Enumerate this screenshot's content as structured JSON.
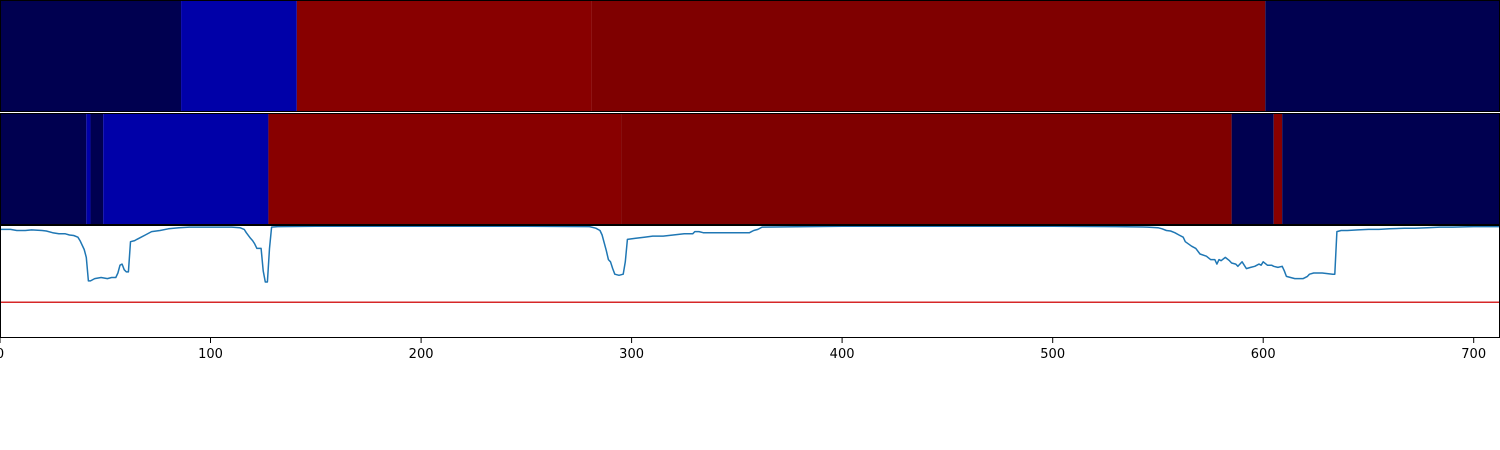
{
  "chart_data": {
    "type": "heatmap",
    "x_range": [
      0,
      712
    ],
    "x_ticks": [
      0,
      100,
      200,
      300,
      400,
      500,
      600,
      700
    ],
    "heatmap_rows": [
      {
        "segments": [
          {
            "start": 0,
            "end": 86,
            "color": "#000050"
          },
          {
            "start": 86,
            "end": 141,
            "color": "#0000a8"
          },
          {
            "start": 141,
            "end": 281,
            "color": "#880000"
          },
          {
            "start": 281,
            "end": 601,
            "color": "#7f0000"
          },
          {
            "start": 601,
            "end": 712,
            "color": "#000050"
          }
        ]
      },
      {
        "segments": [
          {
            "start": 0,
            "end": 41,
            "color": "#000050"
          },
          {
            "start": 41,
            "end": 43,
            "color": "#0000a8"
          },
          {
            "start": 43,
            "end": 49,
            "color": "#000050"
          },
          {
            "start": 49,
            "end": 127.5,
            "color": "#0000a8"
          },
          {
            "start": 127.5,
            "end": 295,
            "color": "#880000"
          },
          {
            "start": 295,
            "end": 585,
            "color": "#7f0000"
          },
          {
            "start": 585,
            "end": 605,
            "color": "#000050"
          },
          {
            "start": 605,
            "end": 609,
            "color": "#880000"
          },
          {
            "start": 609,
            "end": 712,
            "color": "#000050"
          }
        ]
      }
    ],
    "line_series": {
      "color": "#1f77b4",
      "y_range": [
        0,
        1
      ],
      "points": [
        [
          0,
          0.97
        ],
        [
          5,
          0.97
        ],
        [
          8,
          0.96
        ],
        [
          12,
          0.96
        ],
        [
          15,
          0.965
        ],
        [
          20,
          0.96
        ],
        [
          22,
          0.955
        ],
        [
          25,
          0.94
        ],
        [
          28,
          0.93
        ],
        [
          31,
          0.93
        ],
        [
          33,
          0.92
        ],
        [
          35,
          0.915
        ],
        [
          37,
          0.9
        ],
        [
          38,
          0.87
        ],
        [
          40,
          0.79
        ],
        [
          41,
          0.72
        ],
        [
          42,
          0.51
        ],
        [
          43,
          0.51
        ],
        [
          45,
          0.53
        ],
        [
          48,
          0.54
        ],
        [
          51,
          0.53
        ],
        [
          53,
          0.54
        ],
        [
          55,
          0.54
        ],
        [
          56,
          0.58
        ],
        [
          57,
          0.65
        ],
        [
          58,
          0.66
        ],
        [
          59,
          0.61
        ],
        [
          60,
          0.59
        ],
        [
          61,
          0.59
        ],
        [
          62,
          0.86
        ],
        [
          64,
          0.87
        ],
        [
          65,
          0.88
        ],
        [
          67,
          0.9
        ],
        [
          69,
          0.92
        ],
        [
          72,
          0.95
        ],
        [
          76,
          0.96
        ],
        [
          80,
          0.975
        ],
        [
          85,
          0.985
        ],
        [
          90,
          0.99
        ],
        [
          100,
          0.99
        ],
        [
          110,
          0.99
        ],
        [
          114,
          0.985
        ],
        [
          116,
          0.97
        ],
        [
          117,
          0.94
        ],
        [
          119,
          0.89
        ],
        [
          120,
          0.87
        ],
        [
          121,
          0.84
        ],
        [
          122,
          0.8
        ],
        [
          124,
          0.8
        ],
        [
          125,
          0.6
        ],
        [
          126,
          0.5
        ],
        [
          127,
          0.5
        ],
        [
          128,
          0.8
        ],
        [
          129,
          0.99
        ],
        [
          132,
          0.995
        ],
        [
          150,
          0.997
        ],
        [
          200,
          0.997
        ],
        [
          250,
          0.997
        ],
        [
          280,
          0.995
        ],
        [
          283,
          0.98
        ],
        [
          285,
          0.96
        ],
        [
          286,
          0.92
        ],
        [
          287,
          0.85
        ],
        [
          288,
          0.78
        ],
        [
          289,
          0.7
        ],
        [
          290,
          0.68
        ],
        [
          291,
          0.62
        ],
        [
          292,
          0.57
        ],
        [
          294,
          0.56
        ],
        [
          296,
          0.57
        ],
        [
          297,
          0.68
        ],
        [
          298,
          0.88
        ],
        [
          302,
          0.89
        ],
        [
          306,
          0.9
        ],
        [
          310,
          0.91
        ],
        [
          315,
          0.91
        ],
        [
          325,
          0.93
        ],
        [
          329,
          0.93
        ],
        [
          330,
          0.95
        ],
        [
          332,
          0.95
        ],
        [
          334,
          0.94
        ],
        [
          339,
          0.94
        ],
        [
          345,
          0.94
        ],
        [
          350,
          0.94
        ],
        [
          352,
          0.94
        ],
        [
          356,
          0.94
        ],
        [
          357,
          0.95
        ],
        [
          358,
          0.96
        ],
        [
          360,
          0.97
        ],
        [
          362,
          0.99
        ],
        [
          400,
          0.997
        ],
        [
          450,
          0.997
        ],
        [
          500,
          0.997
        ],
        [
          530,
          0.995
        ],
        [
          545,
          0.99
        ],
        [
          550,
          0.985
        ],
        [
          552,
          0.975
        ],
        [
          554,
          0.96
        ],
        [
          556,
          0.955
        ],
        [
          558,
          0.94
        ],
        [
          560,
          0.92
        ],
        [
          562,
          0.9
        ],
        [
          563,
          0.86
        ],
        [
          566,
          0.82
        ],
        [
          568,
          0.8
        ],
        [
          570,
          0.75
        ],
        [
          573,
          0.73
        ],
        [
          575,
          0.7
        ],
        [
          577,
          0.7
        ],
        [
          578,
          0.66
        ],
        [
          579,
          0.7
        ],
        [
          580,
          0.69
        ],
        [
          582,
          0.72
        ],
        [
          584,
          0.69
        ],
        [
          585,
          0.67
        ],
        [
          587,
          0.66
        ],
        [
          588,
          0.64
        ],
        [
          590,
          0.68
        ],
        [
          592,
          0.62
        ],
        [
          594,
          0.63
        ],
        [
          596,
          0.64
        ],
        [
          598,
          0.66
        ],
        [
          599,
          0.65
        ],
        [
          600,
          0.68
        ],
        [
          602,
          0.65
        ],
        [
          604,
          0.65
        ],
        [
          605,
          0.64
        ],
        [
          607,
          0.63
        ],
        [
          609,
          0.64
        ],
        [
          610,
          0.6
        ],
        [
          611,
          0.55
        ],
        [
          613,
          0.54
        ],
        [
          615,
          0.53
        ],
        [
          617,
          0.53
        ],
        [
          619,
          0.53
        ],
        [
          621,
          0.55
        ],
        [
          622,
          0.57
        ],
        [
          624,
          0.58
        ],
        [
          628,
          0.58
        ],
        [
          633,
          0.57
        ],
        [
          634,
          0.57
        ],
        [
          635,
          0.95
        ],
        [
          637,
          0.96
        ],
        [
          640,
          0.96
        ],
        [
          645,
          0.965
        ],
        [
          650,
          0.97
        ],
        [
          655,
          0.97
        ],
        [
          660,
          0.975
        ],
        [
          667,
          0.98
        ],
        [
          672,
          0.98
        ],
        [
          678,
          0.985
        ],
        [
          684,
          0.99
        ],
        [
          690,
          0.99
        ],
        [
          700,
          0.995
        ],
        [
          712,
          0.995
        ]
      ]
    },
    "threshold_line": {
      "y": 0.32,
      "color": "#d62728"
    },
    "title": "",
    "xlabel": "",
    "ylabel": ""
  }
}
